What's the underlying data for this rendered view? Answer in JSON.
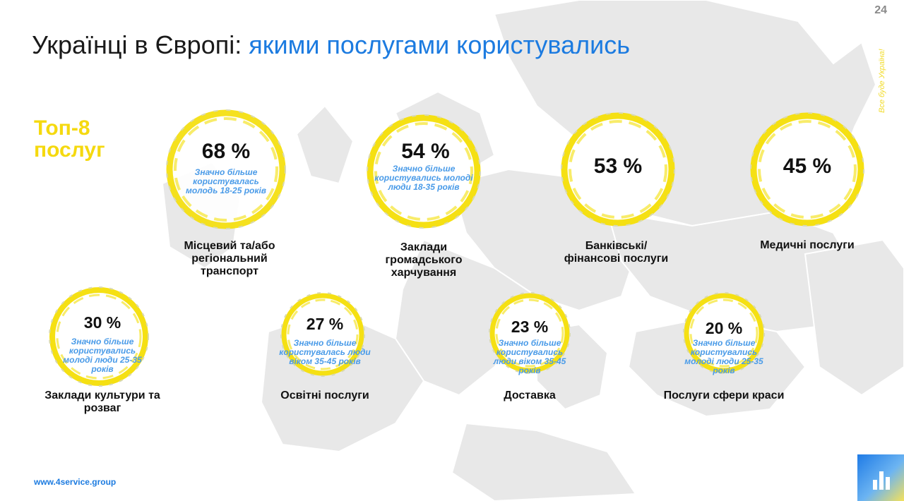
{
  "page_number": "24",
  "side_text": "Все буде Україна!",
  "title": {
    "part1": "Українці в Європі: ",
    "part2": "якими послугами користувались"
  },
  "subtitle": "Топ-8 послуг",
  "services": [
    {
      "percent": "68 %",
      "note": "Значно більше користувалась молодь 18-25 років",
      "label": "Місцевий та/або регіональний транспорт"
    },
    {
      "percent": "54 %",
      "note": "Значно більше користувались молоді люди 18-35 років",
      "label": "Заклади громадського харчування"
    },
    {
      "percent": "53 %",
      "note": "",
      "label": "Банківські/ фінансові послуги"
    },
    {
      "percent": "45 %",
      "note": "",
      "label": "Медичні послуги"
    },
    {
      "percent": "30 %",
      "note": "Значно більше користувались молоді люди 25-35 років",
      "label": "Заклади культури та розваг"
    },
    {
      "percent": "27 %",
      "note": "Значно більше користувалась люди віком 35-45 років",
      "label": "Освітні послуги"
    },
    {
      "percent": "23 %",
      "note": "Значно більше користувались люди віком 35-45 років",
      "label": "Доставка"
    },
    {
      "percent": "20 %",
      "note": "Значно більше користувались молоді люди 25-35 років",
      "label": "Послуги сфери краси"
    }
  ],
  "footer_link": "www.4service.group",
  "colors": {
    "accent_blue": "#1c7be0",
    "accent_yellow": "#f5d90f",
    "note_blue": "#4a9be8",
    "map_gray": "#e6e6e6"
  }
}
